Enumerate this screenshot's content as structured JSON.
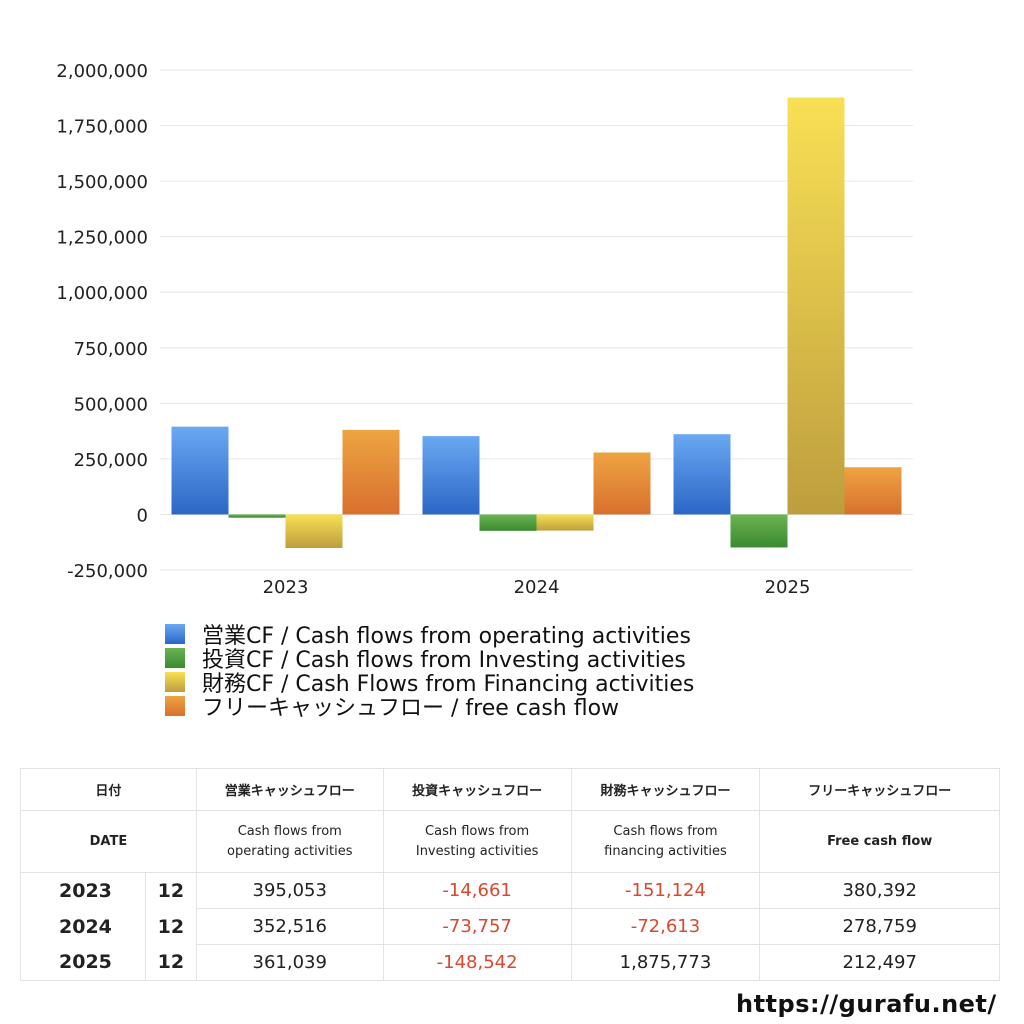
{
  "chart_data": {
    "type": "bar",
    "categories": [
      "2023",
      "2024",
      "2025"
    ],
    "series": [
      {
        "name": "営業CF / Cash flows from operating activities",
        "values": [
          395053,
          352516,
          361039
        ],
        "color": "#4a8ae0"
      },
      {
        "name": "投資CF / Cash flows from Investing activities",
        "values": [
          -14661,
          -73757,
          -148542
        ],
        "color": "#4e9e3e"
      },
      {
        "name": "財務CF / Cash Flows from Financing activities",
        "values": [
          -151124,
          -72613,
          1875773
        ],
        "color": "#e0c84a"
      },
      {
        "name": "フリーキャッシュフロー / free cash flow",
        "values": [
          380392,
          278759,
          212497
        ],
        "color": "#e08838"
      }
    ],
    "ylim": [
      -250000,
      2000000
    ],
    "yticks": [
      -250000,
      0,
      250000,
      500000,
      750000,
      1000000,
      1250000,
      1500000,
      1750000,
      2000000
    ],
    "ytick_labels": [
      "-250,000",
      "0",
      "250,000",
      "500,000",
      "750,000",
      "1,000,000",
      "1,250,000",
      "1,500,000",
      "1,750,000",
      "2,000,000"
    ],
    "grid": true,
    "legend": "bottom-left",
    "title": "",
    "xlabel": "",
    "ylabel": ""
  },
  "table": {
    "header_jp": [
      "日付",
      "営業キャッシュフロー",
      "投資キャッシュフロー",
      "財務キャッシュフロー",
      "フリーキャッシュフロー"
    ],
    "header_en": [
      "DATE",
      "Cash flows from operating activities",
      "Cash flows from Investing activities",
      "Cash flows from financing activities",
      "Free cash flow"
    ],
    "rows": [
      {
        "year": "2023",
        "month": "12",
        "op": "395,053",
        "inv": "-14,661",
        "fin": "-151,124",
        "fcf": "380,392"
      },
      {
        "year": "2024",
        "month": "12",
        "op": "352,516",
        "inv": "-73,757",
        "fin": "-72,613",
        "fcf": "278,759"
      },
      {
        "year": "2025",
        "month": "12",
        "op": "361,039",
        "inv": "-148,542",
        "fin": "1,875,773",
        "fcf": "212,497"
      }
    ]
  },
  "footer": {
    "url": "https://gurafu.net/"
  }
}
